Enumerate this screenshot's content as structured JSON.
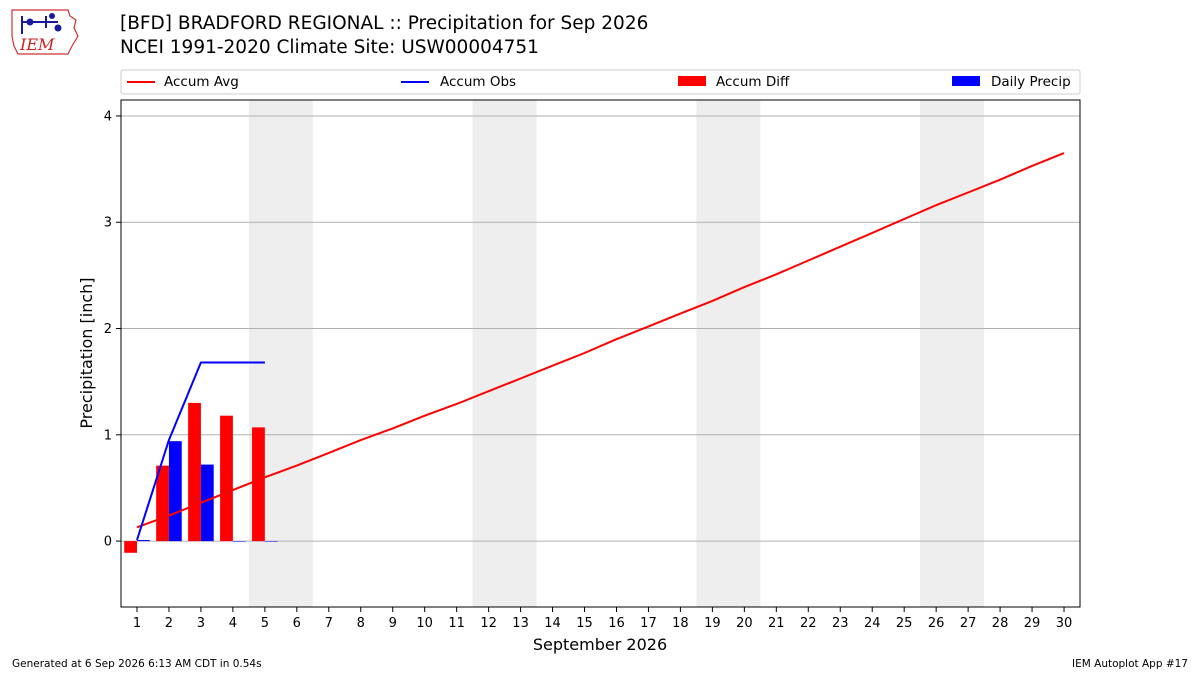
{
  "header": {
    "title_line1": "[BFD] BRADFORD REGIONAL :: Precipitation for Sep 2026",
    "title_line2": "NCEI 1991-2020 Climate Site: USW00004751",
    "logo_text": "IEM"
  },
  "footer": {
    "left": "Generated at 6 Sep 2026 6:13 AM CDT in 0.54s",
    "right": "IEM Autoplot App #17"
  },
  "colors": {
    "accum_avg": "#ff0000",
    "accum_obs": "#0000ff",
    "accum_diff": "#ff0000",
    "daily_precip": "#0000ff",
    "weekend_shade": "#eeeeee",
    "grid": "#b0b0b0"
  },
  "chart_data": {
    "type": "bar",
    "xlabel": "September 2026",
    "ylabel": "Precipitation [inch]",
    "xlim": [
      0.5,
      30.5
    ],
    "ylim": [
      -0.62,
      4.15
    ],
    "yticks": [
      0,
      1,
      2,
      3,
      4
    ],
    "x": [
      1,
      2,
      3,
      4,
      5,
      6,
      7,
      8,
      9,
      10,
      11,
      12,
      13,
      14,
      15,
      16,
      17,
      18,
      19,
      20,
      21,
      22,
      23,
      24,
      25,
      26,
      27,
      28,
      29,
      30
    ],
    "grid": "horizontal",
    "legend_position": "top",
    "legend": [
      "Accum Avg",
      "Accum Obs",
      "Accum Diff",
      "Daily Precip"
    ],
    "weekend_bands": [
      [
        4.5,
        6.5
      ],
      [
        11.5,
        13.5
      ],
      [
        18.5,
        20.5
      ],
      [
        25.5,
        27.5
      ]
    ],
    "series": [
      {
        "name": "Accum Avg",
        "kind": "line",
        "x": [
          1,
          2,
          3,
          4,
          5,
          6,
          7,
          8,
          9,
          10,
          11,
          12,
          13,
          14,
          15,
          16,
          17,
          18,
          19,
          20,
          21,
          22,
          23,
          24,
          25,
          26,
          27,
          28,
          29,
          30
        ],
        "values": [
          0.13,
          0.24,
          0.36,
          0.48,
          0.6,
          0.71,
          0.83,
          0.95,
          1.06,
          1.18,
          1.29,
          1.41,
          1.53,
          1.65,
          1.77,
          1.9,
          2.02,
          2.14,
          2.26,
          2.39,
          2.51,
          2.64,
          2.77,
          2.9,
          3.03,
          3.16,
          3.28,
          3.4,
          3.53,
          3.65
        ]
      },
      {
        "name": "Accum Obs",
        "kind": "line",
        "x": [
          1,
          2,
          3,
          4,
          5
        ],
        "values": [
          0.01,
          0.95,
          1.68,
          1.68,
          1.68
        ]
      },
      {
        "name": "Accum Diff",
        "kind": "bar",
        "x": [
          1,
          2,
          3,
          4,
          5
        ],
        "values": [
          -0.11,
          0.71,
          1.3,
          1.18,
          1.07
        ]
      },
      {
        "name": "Daily Precip",
        "kind": "bar",
        "x": [
          1,
          2,
          3,
          4,
          5
        ],
        "values": [
          0.01,
          0.94,
          0.72,
          0.0,
          0.0
        ]
      }
    ]
  }
}
